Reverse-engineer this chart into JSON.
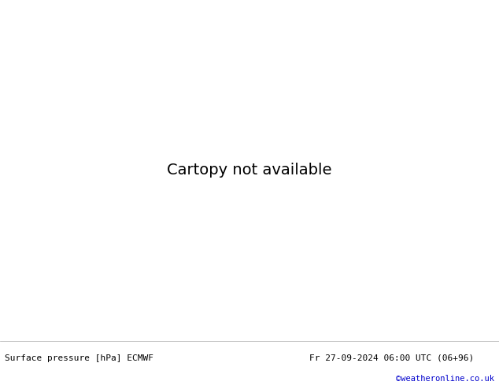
{
  "title_left": "Surface pressure [hPa] ECMWF",
  "title_right": "Fr 27-09-2024 06:00 UTC (06+96)",
  "credit": "©weatheronline.co.uk",
  "credit_color": "#0000cc",
  "background_color": "#ffffff",
  "land_color": "#c8e8b0",
  "ocean_color": "#e8e8e8",
  "border_color": "#888888",
  "figsize": [
    6.34,
    4.9
  ],
  "dpi": 100,
  "bottom_bar_color": "#f0f0f0",
  "text_color": "#000000",
  "lon_min": -20,
  "lon_max": 65,
  "lat_min": -45,
  "lat_max": 42,
  "contour_interval": 4
}
